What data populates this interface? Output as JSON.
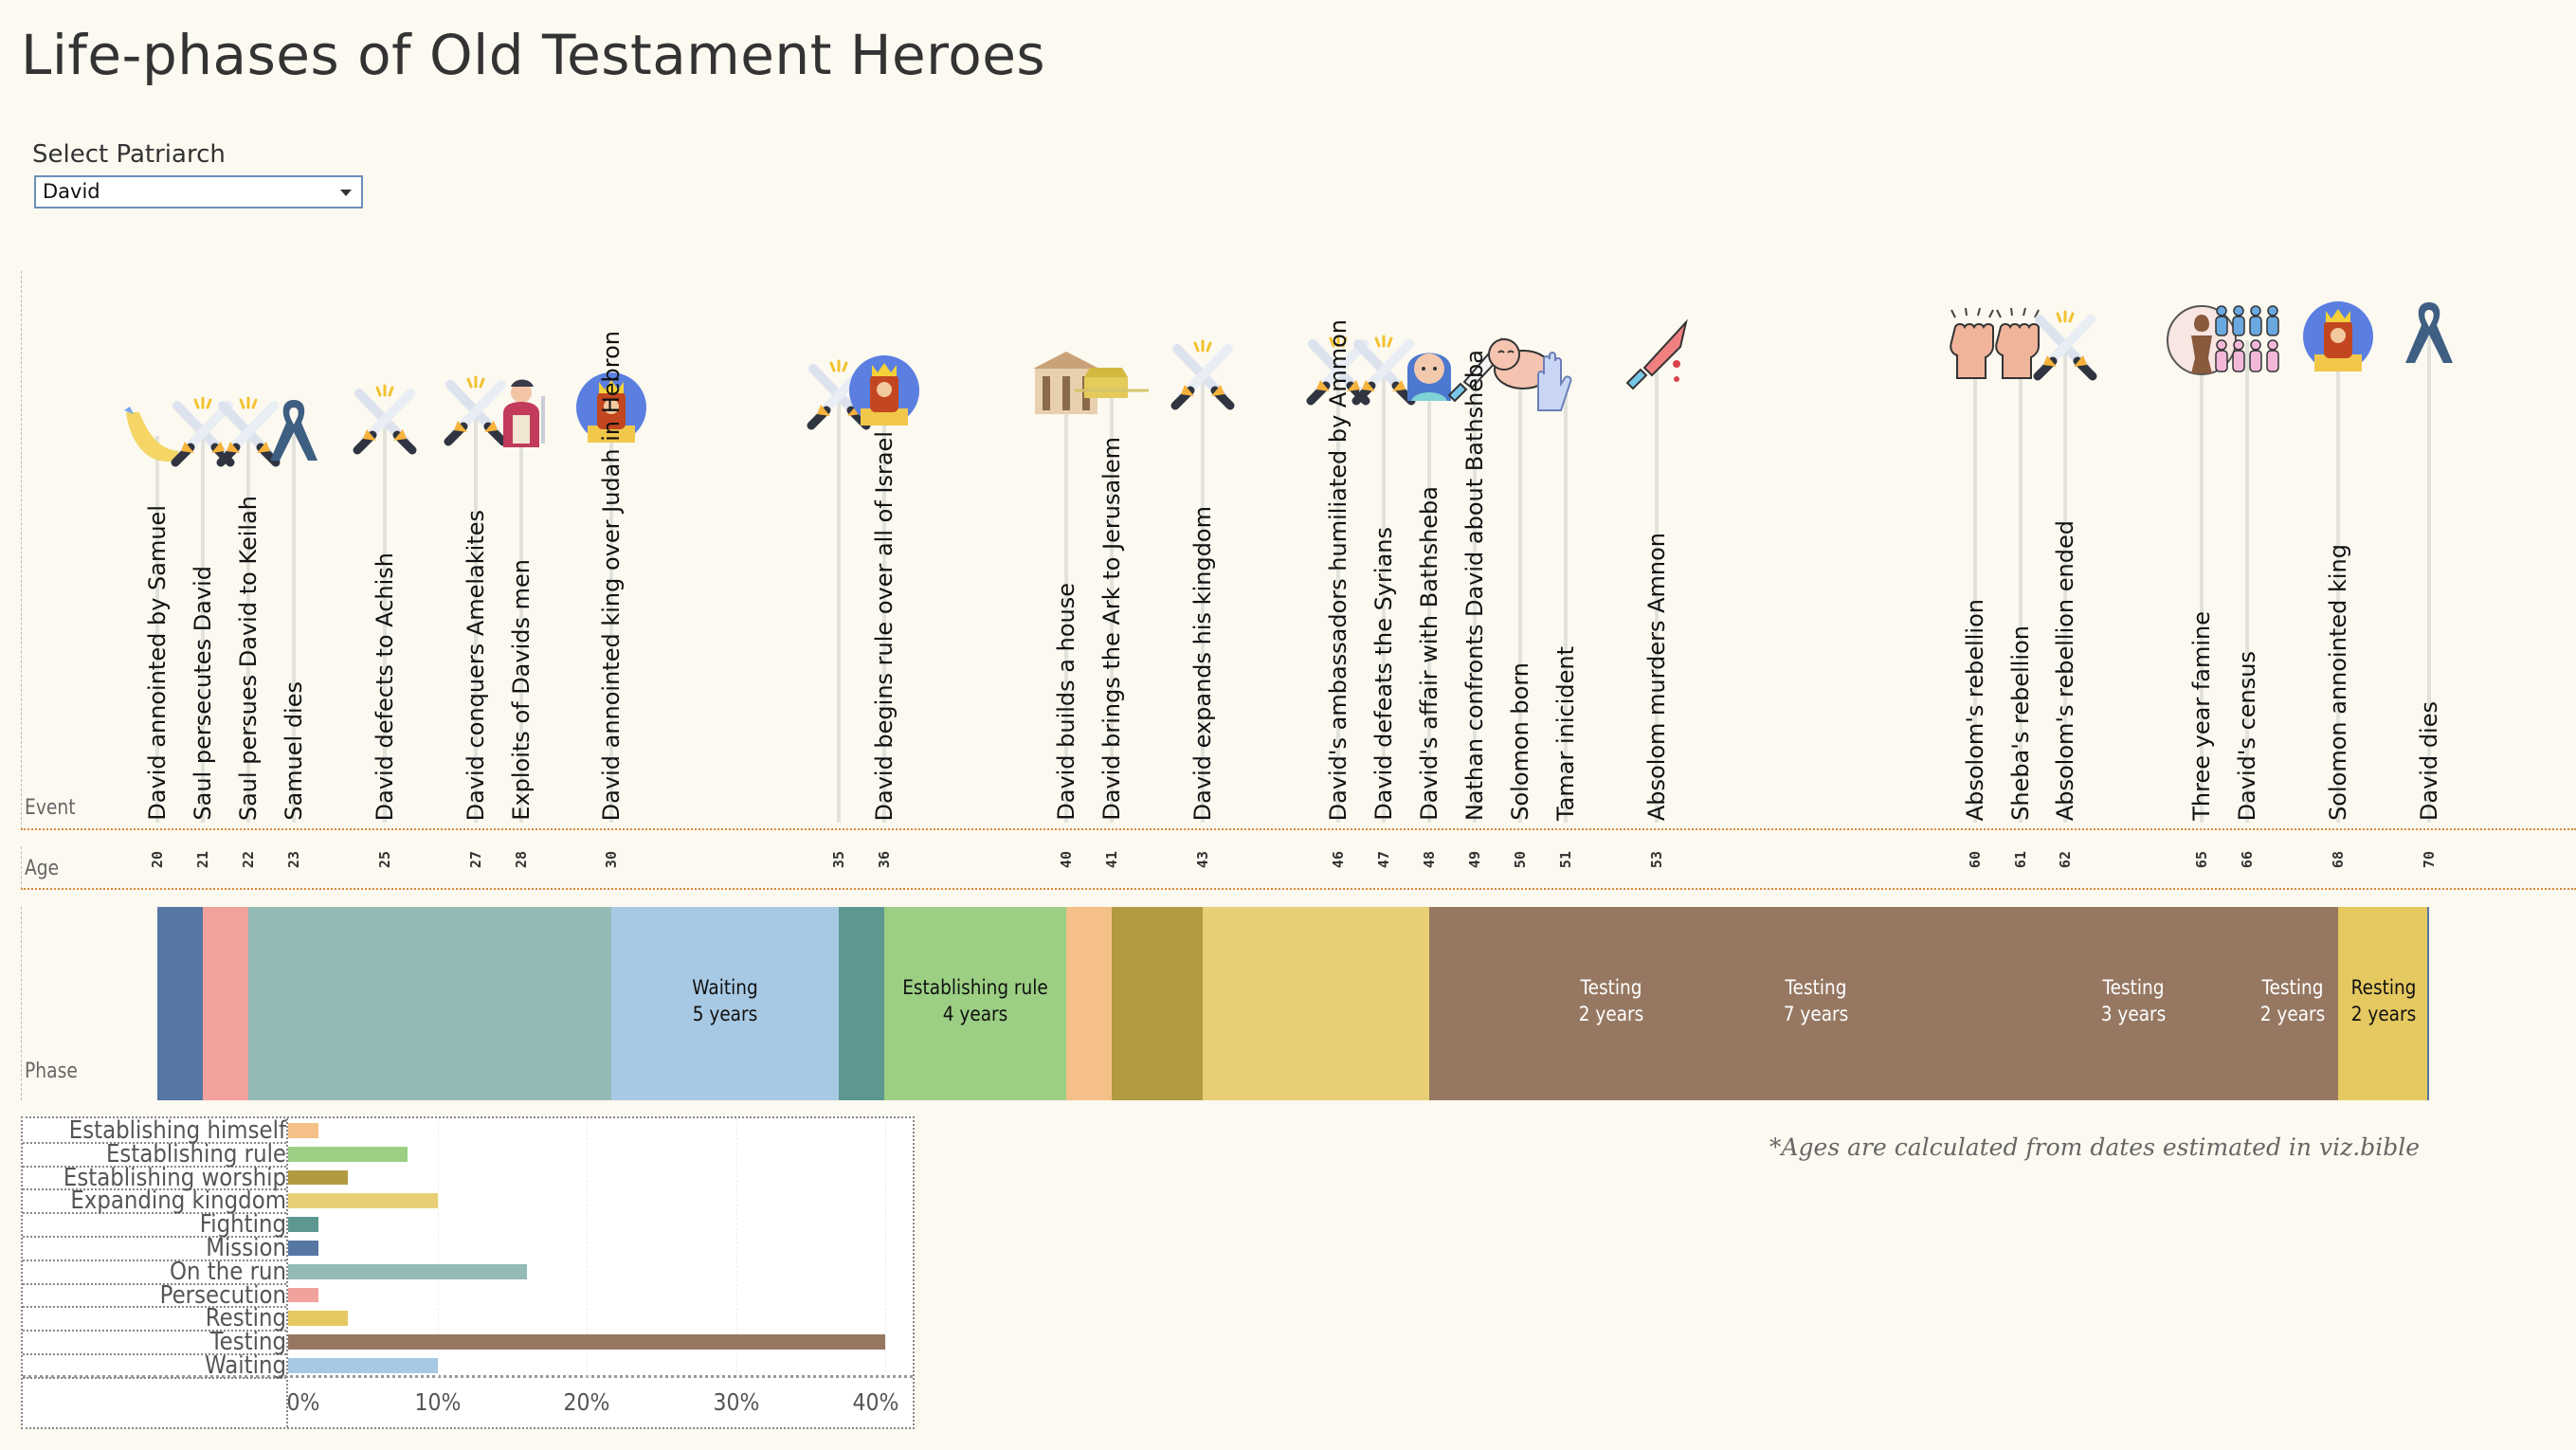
{
  "title": "Life-phases of Old Testament Heroes",
  "filter": {
    "label": "Select Patriarch",
    "selected": "David"
  },
  "row_labels": {
    "event": "Event",
    "age": "Age",
    "phase": "Phase"
  },
  "footnote": "*Ages are calculated from dates estimated in viz.bible",
  "chart_data": [
    {
      "type": "timeline",
      "axis": "Age",
      "xlim": [
        20,
        70
      ],
      "events": [
        {
          "age": 20,
          "label": "David annointed by Samuel",
          "icon": "horn-icon"
        },
        {
          "age": 21,
          "label": "Saul persecutes David",
          "icon": "crossed-swords-icon"
        },
        {
          "age": 22,
          "label": "Saul persues David to Keilah",
          "icon": "crossed-swords-icon"
        },
        {
          "age": 23,
          "label": "Samuel dies",
          "icon": "ribbon-icon"
        },
        {
          "age": 25,
          "label": "David defects to Achish",
          "icon": "crossed-swords-icon"
        },
        {
          "age": 27,
          "label": "David conquers Amelakites",
          "icon": "crossed-swords-icon"
        },
        {
          "age": 28,
          "label": "Exploits of Davids men",
          "icon": "warrior-icon"
        },
        {
          "age": 30,
          "label": "David annointed king over Judah in Hebron",
          "icon": "king-icon"
        },
        {
          "age": 35,
          "label": "",
          "icon": "crossed-swords-icon"
        },
        {
          "age": 36,
          "label": "David begins rule over all of Israel",
          "icon": "king-icon"
        },
        {
          "age": 40,
          "label": "David builds a house",
          "icon": "temple-icon"
        },
        {
          "age": 41,
          "label": "David brings the Ark to Jerusalem",
          "icon": "ark-icon"
        },
        {
          "age": 43,
          "label": "David expands his kingdom",
          "icon": "crossed-swords-icon"
        },
        {
          "age": 46,
          "label": "David's ambassadors humiliated by Ammon",
          "icon": "crossed-swords-icon"
        },
        {
          "age": 47,
          "label": "David defeats the Syrians",
          "icon": "crossed-swords-icon"
        },
        {
          "age": 48,
          "label": "David's affair with Bathsheba",
          "icon": "crying-woman-icon"
        },
        {
          "age": 49,
          "label": "Nathan confronts David about Bathsheba",
          "icon": "knife-icon"
        },
        {
          "age": 50,
          "label": "Solomon born",
          "icon": "baby-icon"
        },
        {
          "age": 51,
          "label": "Tamar inicident",
          "icon": "raised-hands-icon"
        },
        {
          "age": 53,
          "label": "Absolom murders Amnon",
          "icon": "bloody-knife-icon"
        },
        {
          "age": 60,
          "label": "Absolom's rebellion",
          "icon": "raised-fist-icon"
        },
        {
          "age": 61,
          "label": "Sheba's rebellion",
          "icon": "raised-fist-icon"
        },
        {
          "age": 62,
          "label": "Absolom's rebellion ended",
          "icon": "crossed-swords-icon"
        },
        {
          "age": 65,
          "label": "Three year famine",
          "icon": "famine-icon"
        },
        {
          "age": 66,
          "label": "David's census",
          "icon": "people-icon"
        },
        {
          "age": 68,
          "label": "Solomon annointed king",
          "icon": "king-icon"
        },
        {
          "age": 70,
          "label": "David dies",
          "icon": "ribbon-icon"
        }
      ],
      "age_ticks": [
        "20",
        "21",
        "22",
        "23",
        "25",
        "27",
        "28",
        "30",
        "35",
        "36",
        "40",
        "41",
        "43",
        "46",
        "47",
        "48",
        "49",
        "50",
        "51",
        "53",
        "60",
        "61",
        "62",
        "65",
        "66",
        "68",
        "70"
      ],
      "phases": [
        {
          "phase": "Mission",
          "start": 20,
          "end": 21,
          "label": ""
        },
        {
          "phase": "Persecution",
          "start": 21,
          "end": 22,
          "label": ""
        },
        {
          "phase": "On the run",
          "start": 22,
          "end": 30,
          "label": ""
        },
        {
          "phase": "Waiting",
          "start": 30,
          "end": 35,
          "label": "Waiting",
          "duration": "5 years"
        },
        {
          "phase": "Fighting",
          "start": 35,
          "end": 36,
          "label": ""
        },
        {
          "phase": "Establishing rule",
          "start": 36,
          "end": 40,
          "label": "Establishing rule",
          "duration": "4 years"
        },
        {
          "phase": "Establishing himself",
          "start": 40,
          "end": 41,
          "label": ""
        },
        {
          "phase": "Establishing worship",
          "start": 41,
          "end": 43,
          "label": ""
        },
        {
          "phase": "Expanding kingdom",
          "start": 43,
          "end": 48,
          "label": ""
        },
        {
          "phase": "Testing",
          "start": 48,
          "end": 51,
          "label": ""
        },
        {
          "phase": "Testing",
          "start": 51,
          "end": 53,
          "label": "Testing",
          "duration": "2 years"
        },
        {
          "phase": "Testing",
          "start": 53,
          "end": 60,
          "label": "Testing",
          "duration": "7 years"
        },
        {
          "phase": "Testing",
          "start": 60,
          "end": 62,
          "label": ""
        },
        {
          "phase": "Testing",
          "start": 62,
          "end": 65,
          "label": "Testing",
          "duration": "3 years"
        },
        {
          "phase": "Testing",
          "start": 65,
          "end": 66,
          "label": ""
        },
        {
          "phase": "Testing",
          "start": 66,
          "end": 68,
          "label": "Testing",
          "duration": "2 years"
        },
        {
          "phase": "Resting",
          "start": 68,
          "end": 70,
          "label": "Resting",
          "duration": "2 years"
        }
      ]
    },
    {
      "type": "bar",
      "orientation": "horizontal",
      "categories": [
        "Establishing himself",
        "Establishing rule",
        "Establishing worship",
        "Expanding kingdom",
        "Fighting",
        "Mission",
        "On the run",
        "Persecution",
        "Resting",
        "Testing",
        "Waiting"
      ],
      "values": [
        2,
        8,
        4,
        10,
        2,
        2,
        16,
        2,
        4,
        40,
        10
      ],
      "unit": "%",
      "xlim": [
        0,
        40
      ],
      "x_ticks": [
        "0%",
        "10%",
        "20%",
        "30%",
        "40%"
      ],
      "grid": true
    }
  ],
  "phase_colors": {
    "Mission": "#5677a4",
    "Persecution": "#f1a29c",
    "On the run": "#93bab5",
    "Waiting": "#a8c9e4",
    "Fighting": "#5e9792",
    "Establishing rule": "#9ccf84",
    "Establishing himself": "#f5c088",
    "Establishing worship": "#b29a42",
    "Expanding kingdom": "#e8cf76",
    "Testing": "#967862",
    "Resting": "#e5c960"
  }
}
